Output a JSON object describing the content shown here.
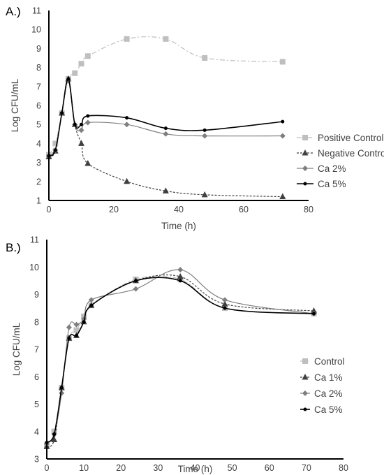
{
  "chart_data": [
    {
      "type": "line",
      "panel_label": "A.)",
      "xlabel": "Time (h)",
      "ylabel": "Log CFU/mL",
      "xlim": [
        0,
        80
      ],
      "ylim": [
        1,
        11
      ],
      "xticks": [
        "0",
        "20",
        "40",
        "60",
        "80"
      ],
      "yticks": [
        "1",
        "2",
        "3",
        "4",
        "5",
        "6",
        "7",
        "8",
        "9",
        "10",
        "11"
      ],
      "grid": false,
      "legend_position": "right",
      "series": [
        {
          "name": "Positive Control",
          "color": "#bfbfbf",
          "marker": "square",
          "dash": "dashdot",
          "x": [
            0,
            2,
            4,
            6,
            8,
            10,
            12,
            24,
            36,
            48,
            72
          ],
          "y": [
            3.4,
            4.0,
            5.6,
            7.4,
            7.7,
            8.2,
            8.6,
            9.5,
            9.5,
            8.5,
            8.3
          ]
        },
        {
          "name": "Negative Control",
          "color": "#404040",
          "marker": "triangle",
          "dash": "dashed",
          "x": [
            0,
            2,
            4,
            6,
            8,
            10,
            12,
            24,
            36,
            48,
            72
          ],
          "y": [
            3.3,
            3.6,
            5.6,
            7.4,
            5.0,
            4.0,
            2.95,
            2.0,
            1.5,
            1.3,
            1.2
          ]
        },
        {
          "name": "Ca 2%",
          "color": "#7f7f7f",
          "marker": "diamond",
          "dash": "solid",
          "x": [
            0,
            2,
            4,
            6,
            8,
            10,
            12,
            24,
            36,
            48,
            72
          ],
          "y": [
            3.35,
            3.65,
            5.6,
            7.3,
            5.0,
            4.7,
            5.1,
            5.0,
            4.5,
            4.4,
            4.4
          ]
        },
        {
          "name": "Ca 5%",
          "color": "#000000",
          "marker": "circle",
          "dash": "solid",
          "x": [
            0,
            2,
            4,
            6,
            8,
            10,
            12,
            24,
            36,
            48,
            72
          ],
          "y": [
            3.35,
            3.65,
            5.6,
            7.4,
            5.0,
            5.0,
            5.45,
            5.35,
            4.8,
            4.7,
            5.15
          ]
        }
      ]
    },
    {
      "type": "line",
      "panel_label": "B.)",
      "xlabel": "Time (h)",
      "ylabel": "Log CFU/mL",
      "xlim": [
        0,
        80
      ],
      "ylim": [
        3,
        11
      ],
      "xticks": [
        "0",
        "10",
        "20",
        "30",
        "40",
        "50",
        "60",
        "70",
        "80"
      ],
      "yticks": [
        "3",
        "4",
        "5",
        "6",
        "7",
        "8",
        "9",
        "10",
        "11"
      ],
      "grid": false,
      "legend_position": "right",
      "series": [
        {
          "name": "Control",
          "color": "#bfbfbf",
          "marker": "square",
          "dash": "dashdot",
          "x": [
            0,
            2,
            4,
            6,
            8,
            10,
            12,
            24,
            36,
            48,
            72
          ],
          "y": [
            3.5,
            4.0,
            5.6,
            7.4,
            7.7,
            8.2,
            8.6,
            9.55,
            9.55,
            8.5,
            8.3
          ]
        },
        {
          "name": "Ca 1%",
          "color": "#404040",
          "marker": "triangle",
          "dash": "dashed",
          "x": [
            0,
            2,
            4,
            6,
            8,
            10,
            12,
            24,
            36,
            48,
            72
          ],
          "y": [
            3.45,
            3.7,
            5.6,
            7.4,
            7.5,
            8.0,
            8.6,
            9.5,
            9.65,
            8.65,
            8.4
          ]
        },
        {
          "name": "Ca 2%",
          "color": "#7f7f7f",
          "marker": "diamond",
          "dash": "solid",
          "x": [
            0,
            2,
            4,
            6,
            8,
            10,
            12,
            24,
            36,
            48,
            72
          ],
          "y": [
            3.55,
            3.9,
            5.4,
            7.8,
            7.9,
            8.1,
            8.8,
            9.2,
            9.9,
            8.8,
            8.3
          ]
        },
        {
          "name": "Ca 5%",
          "color": "#000000",
          "marker": "circle",
          "dash": "solid",
          "x": [
            0,
            2,
            4,
            6,
            8,
            10,
            12,
            24,
            36,
            48,
            72
          ],
          "y": [
            3.6,
            3.9,
            5.6,
            7.4,
            7.5,
            8.0,
            8.6,
            9.5,
            9.5,
            8.5,
            8.3
          ]
        }
      ]
    }
  ]
}
